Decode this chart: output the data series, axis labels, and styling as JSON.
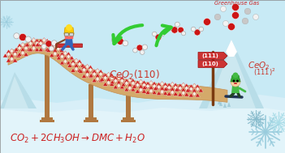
{
  "bg_color": "#c8eaf5",
  "snow_color_light": "#ddf2f8",
  "snow_color_ground": "#c5e8f0",
  "slope_top": "#d4a96a",
  "slope_mid": "#c49055",
  "slope_dark": "#b07840",
  "ceo2_color": "#c8352a",
  "red_atom": "#cc1515",
  "white_atom": "#f2f2f2",
  "grey_atom": "#c8c8c8",
  "arrow_color": "#33cc33",
  "text_red": "#cc2222",
  "greenhouse_color": "#cc2222",
  "sign_color": "#cc3333",
  "snowflake_color": "#88ccdd",
  "crystal_red": "#cc2222",
  "crystal_white": "#f0ede0",
  "figsize": [
    3.51,
    1.89
  ],
  "dpi": 100,
  "greenhouse_label": "Greenhouse Gas"
}
